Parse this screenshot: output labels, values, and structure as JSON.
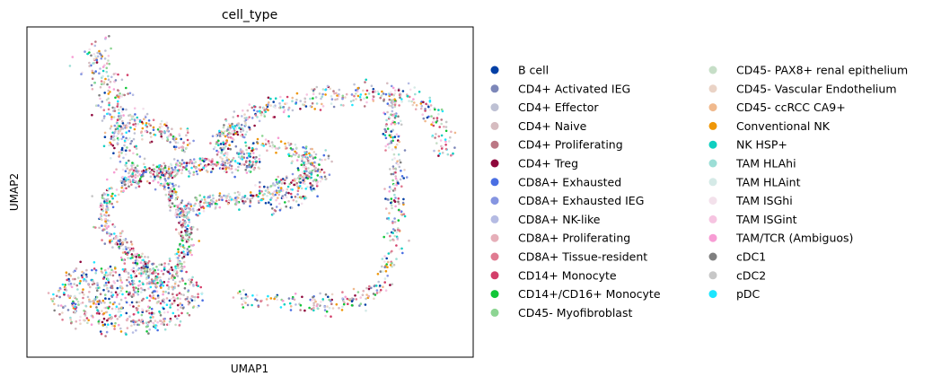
{
  "chart_data": {
    "type": "scatter",
    "title": "cell_type",
    "xlabel": "UMAP1",
    "ylabel": "UMAP2",
    "ticks": "none",
    "grid": false,
    "legend_position": "right, outside plot, two columns",
    "categories": [
      {
        "name": "B cell",
        "color": "#023fa5"
      },
      {
        "name": "CD4+ Activated IEG",
        "color": "#7d87b9"
      },
      {
        "name": "CD4+ Effector",
        "color": "#bec1d4"
      },
      {
        "name": "CD4+ Naive",
        "color": "#d6bcc0"
      },
      {
        "name": "CD4+ Proliferating",
        "color": "#bb7784"
      },
      {
        "name": "CD4+ Treg",
        "color": "#8e063b"
      },
      {
        "name": "CD8A+ Exhausted",
        "color": "#4a6fe3"
      },
      {
        "name": "CD8A+ Exhausted IEG",
        "color": "#8595e1"
      },
      {
        "name": "CD8A+ NK-like",
        "color": "#b5bbe3"
      },
      {
        "name": "CD8A+ Proliferating",
        "color": "#e6afb9"
      },
      {
        "name": "CD8A+ Tissue-resident",
        "color": "#e07b91"
      },
      {
        "name": "CD14+ Monocyte",
        "color": "#d33f6a"
      },
      {
        "name": "CD14+/CD16+ Monocyte",
        "color": "#11c638"
      },
      {
        "name": "CD45- Myofibroblast",
        "color": "#8dd593"
      },
      {
        "name": "CD45- PAX8+ renal epithelium",
        "color": "#c6dec7"
      },
      {
        "name": "CD45- Vascular Endothelium",
        "color": "#ead3c6"
      },
      {
        "name": "CD45- ccRCC CA9+",
        "color": "#f0b98d"
      },
      {
        "name": "Conventional NK",
        "color": "#ef9708"
      },
      {
        "name": "NK HSP+",
        "color": "#0fcfc0"
      },
      {
        "name": "TAM HLAhi",
        "color": "#9cded6"
      },
      {
        "name": "TAM HLAint",
        "color": "#d5eae7"
      },
      {
        "name": "TAM ISGhi",
        "color": "#f3e1eb"
      },
      {
        "name": "TAM ISGint",
        "color": "#f6c4e1"
      },
      {
        "name": "TAM/TCR (Ambiguos)",
        "color": "#f79cd4"
      },
      {
        "name": "cDC1",
        "color": "#7f7f7f"
      },
      {
        "name": "cDC2",
        "color": "#c7c7c7"
      },
      {
        "name": "pDC",
        "color": "#1ce6ff"
      }
    ]
  }
}
